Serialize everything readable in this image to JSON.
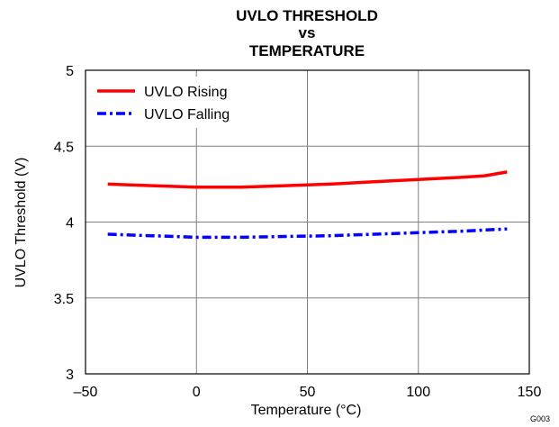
{
  "chart_data": {
    "type": "line",
    "title_lines": [
      "UVLO THRESHOLD",
      "vs",
      "TEMPERATURE"
    ],
    "xlabel": "Temperature (°C)",
    "ylabel": "UVLO Threshold (V)",
    "xlim": [
      -50,
      150
    ],
    "ylim": [
      3,
      5
    ],
    "xticks": [
      -50,
      0,
      50,
      100,
      150
    ],
    "xtick_labels": [
      "–50",
      "0",
      "50",
      "100",
      "150"
    ],
    "yticks": [
      3,
      3.5,
      4,
      4.5,
      5
    ],
    "ytick_labels": [
      "3",
      "3.5",
      "4",
      "4.5",
      "5"
    ],
    "grid": true,
    "legend_position": "top-left",
    "figure_code": "G003",
    "series": [
      {
        "name": "UVLO Rising",
        "color": "#ff0000",
        "style": "solid",
        "x": [
          -40,
          -20,
          0,
          20,
          40,
          60,
          80,
          100,
          120,
          130,
          140
        ],
        "y": [
          4.25,
          4.24,
          4.23,
          4.23,
          4.24,
          4.25,
          4.265,
          4.28,
          4.295,
          4.305,
          4.33
        ]
      },
      {
        "name": "UVLO Falling",
        "color": "#0000ff",
        "style": "dashdot",
        "x": [
          -40,
          -20,
          0,
          20,
          40,
          60,
          80,
          100,
          120,
          140
        ],
        "y": [
          3.92,
          3.91,
          3.9,
          3.9,
          3.905,
          3.91,
          3.92,
          3.93,
          3.94,
          3.955
        ]
      }
    ]
  }
}
